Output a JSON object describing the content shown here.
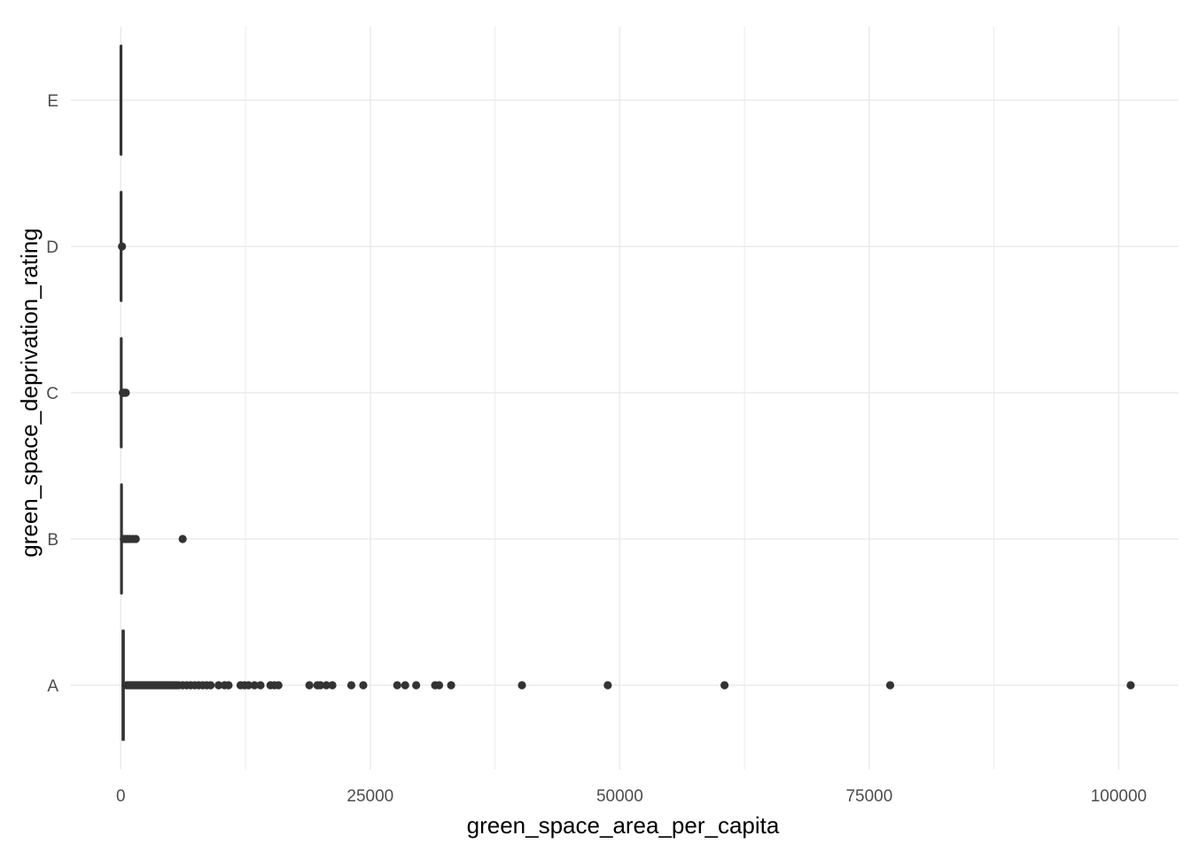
{
  "chart_data": {
    "type": "boxplot",
    "orientation": "horizontal",
    "title": "",
    "xlabel": "green_space_area_per_capita",
    "ylabel": "green_space_deprivation_rating",
    "xlim": [
      -5000,
      106000
    ],
    "x_ticks": [
      0,
      25000,
      50000,
      75000,
      100000
    ],
    "x_minor_ticks": [
      12500,
      37500,
      62500,
      87500
    ],
    "categories": [
      "A",
      "B",
      "C",
      "D",
      "E"
    ],
    "grid": true,
    "colors": {
      "marks": "#333333",
      "grid": "#ebebeb",
      "tick_text": "#4d4d4d",
      "axis_title": "#000000"
    },
    "series": [
      {
        "category": "A",
        "box": [
          60,
          150,
          250,
          320,
          430
        ],
        "outliers": [
          600,
          800,
          1000,
          1200,
          1400,
          1600,
          1800,
          2000,
          2200,
          2400,
          2600,
          2800,
          3000,
          3200,
          3400,
          3600,
          3800,
          4000,
          4200,
          4400,
          4600,
          4800,
          5000,
          5200,
          5400,
          5600,
          5800,
          6200,
          6600,
          7000,
          7400,
          7800,
          8200,
          8600,
          9000,
          9800,
          10400,
          10800,
          12000,
          12400,
          12800,
          13400,
          14000,
          15000,
          15400,
          15800,
          18900,
          19700,
          20000,
          20600,
          21200,
          23100,
          24300,
          27700,
          28500,
          29600,
          31500,
          31900,
          33100,
          40200,
          48800,
          60500,
          77100,
          101200
        ]
      },
      {
        "category": "B",
        "box": [
          10,
          40,
          70,
          100,
          180
        ],
        "outliers": [
          300,
          500,
          700,
          900,
          1200,
          1500,
          6200
        ]
      },
      {
        "category": "C",
        "box": [
          5,
          25,
          45,
          70,
          130
        ],
        "outliers": [
          200,
          300,
          400,
          500
        ]
      },
      {
        "category": "D",
        "box": [
          2,
          15,
          30,
          55,
          90
        ],
        "outliers": [
          120
        ]
      },
      {
        "category": "E",
        "box": [
          0,
          8,
          18,
          35,
          60
        ],
        "outliers": []
      }
    ]
  }
}
